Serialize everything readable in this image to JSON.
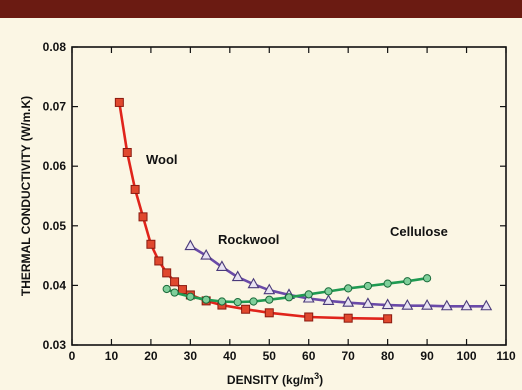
{
  "chart_data": {
    "type": "line",
    "title": "",
    "xlabel": "DENSITY (kg/m",
    "xlabel_sup": "3",
    "xlabel_suffix": ")",
    "ylabel": "THERMAL CONDUCTIVITY (W/m.K)",
    "xlim": [
      0,
      110
    ],
    "ylim": [
      0.03,
      0.08
    ],
    "x_ticks": [
      "0",
      "10",
      "20",
      "30",
      "40",
      "50",
      "60",
      "70",
      "80",
      "90",
      "100",
      "110"
    ],
    "x_tick_values": [
      0,
      10,
      20,
      30,
      40,
      50,
      60,
      70,
      80,
      90,
      100,
      110
    ],
    "y_ticks": [
      "0.03",
      "0.04",
      "0.05",
      "0.06",
      "0.07",
      "0.08"
    ],
    "y_tick_values": [
      0.03,
      0.04,
      0.05,
      0.06,
      0.07,
      0.08
    ],
    "grid": false,
    "series": [
      {
        "name": "Wool",
        "color": "#e0241b",
        "marker": "square",
        "x": [
          12,
          14,
          16,
          18,
          20,
          22,
          24,
          26,
          28,
          30,
          34,
          38,
          44,
          50,
          60,
          70,
          80
        ],
        "y": [
          0.0707,
          0.0623,
          0.0561,
          0.0515,
          0.0469,
          0.0441,
          0.0421,
          0.0406,
          0.0393,
          0.0384,
          0.0374,
          0.0367,
          0.036,
          0.0354,
          0.0347,
          0.0345,
          0.0344
        ]
      },
      {
        "name": "Rockwool",
        "color": "#6a4aa8",
        "marker": "triangle",
        "x": [
          30,
          34,
          38,
          42,
          46,
          50,
          55,
          60,
          65,
          70,
          75,
          80,
          85,
          90,
          95,
          100,
          105
        ],
        "y": [
          0.0466,
          0.045,
          0.0431,
          0.0414,
          0.0402,
          0.0392,
          0.0384,
          0.0378,
          0.0374,
          0.0371,
          0.0369,
          0.0367,
          0.0366,
          0.0366,
          0.0365,
          0.0365,
          0.0365
        ]
      },
      {
        "name": "Cellulose",
        "color": "#1f9a52",
        "marker": "circle",
        "x": [
          24,
          26,
          30,
          34,
          38,
          42,
          46,
          50,
          55,
          60,
          65,
          70,
          75,
          80,
          85,
          90
        ],
        "y": [
          0.0394,
          0.0388,
          0.0381,
          0.0376,
          0.0373,
          0.0372,
          0.0373,
          0.0376,
          0.038,
          0.0385,
          0.039,
          0.0395,
          0.0399,
          0.0403,
          0.0407,
          0.0412
        ]
      }
    ],
    "annotations": {
      "wool": "Wool",
      "rockwool": "Rockwool",
      "cellulose": "Cellulose"
    }
  }
}
